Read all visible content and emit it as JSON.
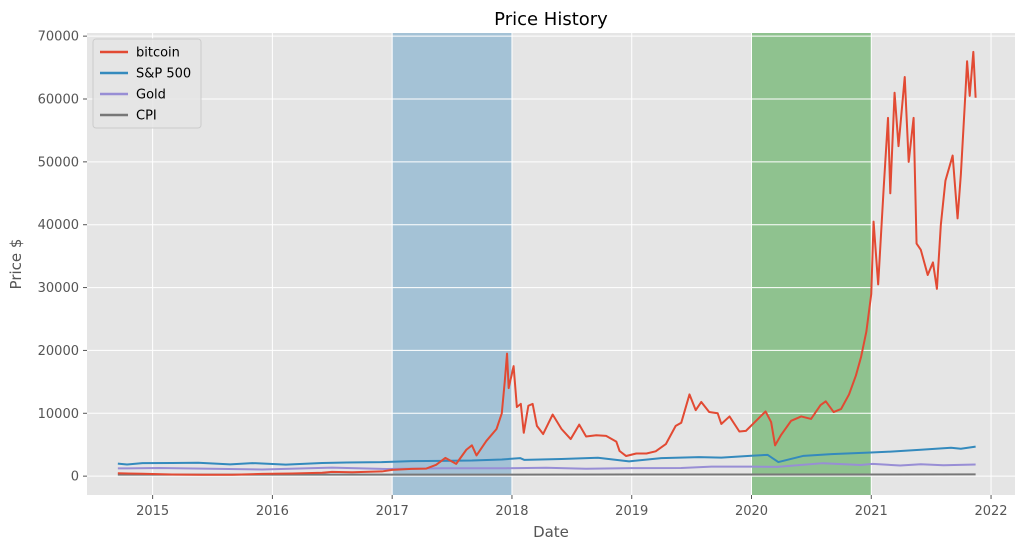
{
  "chart_data": {
    "type": "line",
    "title": "Price History",
    "xlabel": "Date",
    "ylabel": "Price $",
    "xlim": [
      "2014-06-15",
      "2022-03-15"
    ],
    "ylim": [
      -3000,
      70500
    ],
    "grid": true,
    "legend_placement": "top-left",
    "x_ticks": [
      "2015",
      "2016",
      "2017",
      "2018",
      "2019",
      "2020",
      "2021",
      "2022"
    ],
    "y_ticks": [
      "0",
      "10000",
      "20000",
      "30000",
      "40000",
      "50000",
      "60000",
      "70000"
    ],
    "shaded_regions": [
      {
        "x_start": "2017-01-01",
        "x_end": "2018-01-01",
        "color": "#a4c2d6"
      },
      {
        "x_start": "2020-01-01",
        "x_end": "2021-01-01",
        "color": "#8fc28f"
      }
    ],
    "series": [
      {
        "name": "bitcoin",
        "color": "#e24a33",
        "points": [
          [
            "2014-09-17",
            457
          ],
          [
            "2014-12-01",
            378
          ],
          [
            "2015-03-01",
            260
          ],
          [
            "2015-06-01",
            225
          ],
          [
            "2015-09-01",
            230
          ],
          [
            "2015-12-01",
            360
          ],
          [
            "2016-03-01",
            415
          ],
          [
            "2016-06-01",
            540
          ],
          [
            "2016-07-01",
            670
          ],
          [
            "2016-09-01",
            610
          ],
          [
            "2016-12-01",
            750
          ],
          [
            "2017-01-01",
            1000
          ],
          [
            "2017-03-01",
            1150
          ],
          [
            "2017-04-15",
            1200
          ],
          [
            "2017-05-15",
            1800
          ],
          [
            "2017-06-12",
            2900
          ],
          [
            "2017-07-15",
            1950
          ],
          [
            "2017-08-15",
            4200
          ],
          [
            "2017-09-01",
            4900
          ],
          [
            "2017-09-15",
            3300
          ],
          [
            "2017-10-15",
            5600
          ],
          [
            "2017-11-15",
            7500
          ],
          [
            "2017-12-01",
            10000
          ],
          [
            "2017-12-10",
            15000
          ],
          [
            "2017-12-17",
            19500
          ],
          [
            "2017-12-22",
            14000
          ],
          [
            "2018-01-06",
            17500
          ],
          [
            "2018-01-16",
            11000
          ],
          [
            "2018-01-28",
            11500
          ],
          [
            "2018-02-06",
            6900
          ],
          [
            "2018-02-20",
            11200
          ],
          [
            "2018-03-05",
            11500
          ],
          [
            "2018-03-18",
            8000
          ],
          [
            "2018-04-06",
            6700
          ],
          [
            "2018-05-05",
            9800
          ],
          [
            "2018-06-01",
            7500
          ],
          [
            "2018-06-29",
            5900
          ],
          [
            "2018-07-25",
            8200
          ],
          [
            "2018-08-15",
            6300
          ],
          [
            "2018-09-15",
            6500
          ],
          [
            "2018-10-15",
            6400
          ],
          [
            "2018-11-15",
            5500
          ],
          [
            "2018-11-25",
            4000
          ],
          [
            "2018-12-15",
            3200
          ],
          [
            "2019-01-15",
            3600
          ],
          [
            "2019-02-15",
            3600
          ],
          [
            "2019-03-15",
            3950
          ],
          [
            "2019-04-15",
            5100
          ],
          [
            "2019-05-15",
            8000
          ],
          [
            "2019-06-01",
            8500
          ],
          [
            "2019-06-26",
            13000
          ],
          [
            "2019-07-15",
            10500
          ],
          [
            "2019-08-01",
            11800
          ],
          [
            "2019-08-25",
            10200
          ],
          [
            "2019-09-20",
            10000
          ],
          [
            "2019-10-01",
            8300
          ],
          [
            "2019-10-26",
            9500
          ],
          [
            "2019-11-25",
            7100
          ],
          [
            "2019-12-15",
            7200
          ],
          [
            "2020-01-15",
            8800
          ],
          [
            "2020-02-13",
            10300
          ],
          [
            "2020-03-01",
            8600
          ],
          [
            "2020-03-13",
            4900
          ],
          [
            "2020-04-01",
            6600
          ],
          [
            "2020-05-01",
            8800
          ],
          [
            "2020-06-01",
            9500
          ],
          [
            "2020-07-01",
            9100
          ],
          [
            "2020-07-30",
            11300
          ],
          [
            "2020-08-15",
            11900
          ],
          [
            "2020-09-08",
            10200
          ],
          [
            "2020-10-01",
            10700
          ],
          [
            "2020-10-25",
            13000
          ],
          [
            "2020-11-15",
            16000
          ],
          [
            "2020-12-01",
            19000
          ],
          [
            "2020-12-17",
            23000
          ],
          [
            "2021-01-01",
            29000
          ],
          [
            "2021-01-08",
            40500
          ],
          [
            "2021-01-22",
            30500
          ],
          [
            "2021-02-08",
            46000
          ],
          [
            "2021-02-21",
            57000
          ],
          [
            "2021-02-28",
            45000
          ],
          [
            "2021-03-13",
            61000
          ],
          [
            "2021-03-25",
            52500
          ],
          [
            "2021-04-13",
            63500
          ],
          [
            "2021-04-25",
            50000
          ],
          [
            "2021-05-10",
            57000
          ],
          [
            "2021-05-19",
            37000
          ],
          [
            "2021-06-01",
            36000
          ],
          [
            "2021-06-22",
            32000
          ],
          [
            "2021-07-08",
            34000
          ],
          [
            "2021-07-20",
            29800
          ],
          [
            "2021-08-01",
            40000
          ],
          [
            "2021-08-15",
            47000
          ],
          [
            "2021-09-06",
            51000
          ],
          [
            "2021-09-21",
            41000
          ],
          [
            "2021-10-01",
            48000
          ],
          [
            "2021-10-15",
            61000
          ],
          [
            "2021-10-20",
            66000
          ],
          [
            "2021-10-28",
            60500
          ],
          [
            "2021-11-08",
            67500
          ],
          [
            "2021-11-15",
            60200
          ]
        ]
      },
      {
        "name": "S&P 500",
        "color": "#348abd",
        "points": [
          [
            "2014-09-17",
            2000
          ],
          [
            "2014-10-15",
            1860
          ],
          [
            "2014-12-01",
            2070
          ],
          [
            "2015-03-01",
            2100
          ],
          [
            "2015-05-20",
            2130
          ],
          [
            "2015-08-25",
            1870
          ],
          [
            "2015-11-01",
            2080
          ],
          [
            "2016-02-11",
            1830
          ],
          [
            "2016-06-01",
            2100
          ],
          [
            "2016-08-15",
            2180
          ],
          [
            "2016-12-01",
            2230
          ],
          [
            "2017-03-01",
            2390
          ],
          [
            "2017-06-01",
            2430
          ],
          [
            "2017-09-01",
            2480
          ],
          [
            "2017-12-01",
            2650
          ],
          [
            "2018-01-26",
            2870
          ],
          [
            "2018-02-08",
            2580
          ],
          [
            "2018-06-01",
            2730
          ],
          [
            "2018-09-20",
            2930
          ],
          [
            "2018-12-24",
            2350
          ],
          [
            "2019-04-01",
            2870
          ],
          [
            "2019-07-25",
            3020
          ],
          [
            "2019-10-01",
            2950
          ],
          [
            "2020-01-01",
            3250
          ],
          [
            "2020-02-19",
            3390
          ],
          [
            "2020-03-23",
            2240
          ],
          [
            "2020-06-08",
            3230
          ],
          [
            "2020-09-01",
            3500
          ],
          [
            "2020-12-31",
            3760
          ],
          [
            "2021-03-01",
            3900
          ],
          [
            "2021-06-01",
            4200
          ],
          [
            "2021-09-01",
            4520
          ],
          [
            "2021-10-01",
            4350
          ],
          [
            "2021-11-15",
            4700
          ]
        ]
      },
      {
        "name": "Gold",
        "color": "#988ed5",
        "points": [
          [
            "2014-09-17",
            1230
          ],
          [
            "2015-01-20",
            1290
          ],
          [
            "2015-06-01",
            1190
          ],
          [
            "2015-12-01",
            1060
          ],
          [
            "2016-07-01",
            1350
          ],
          [
            "2016-12-15",
            1130
          ],
          [
            "2017-06-01",
            1260
          ],
          [
            "2017-12-15",
            1260
          ],
          [
            "2018-04-15",
            1340
          ],
          [
            "2018-08-15",
            1180
          ],
          [
            "2018-12-31",
            1280
          ],
          [
            "2019-06-01",
            1300
          ],
          [
            "2019-09-01",
            1520
          ],
          [
            "2020-01-01",
            1520
          ],
          [
            "2020-03-20",
            1480
          ],
          [
            "2020-08-06",
            2060
          ],
          [
            "2020-11-30",
            1770
          ],
          [
            "2021-01-05",
            1950
          ],
          [
            "2021-03-30",
            1690
          ],
          [
            "2021-06-01",
            1900
          ],
          [
            "2021-08-09",
            1730
          ],
          [
            "2021-11-15",
            1860
          ]
        ]
      },
      {
        "name": "CPI",
        "color": "#777777",
        "points": [
          [
            "2014-09-17",
            237
          ],
          [
            "2016-01-01",
            237
          ],
          [
            "2017-01-01",
            242
          ],
          [
            "2018-01-01",
            248
          ],
          [
            "2019-01-01",
            252
          ],
          [
            "2020-01-01",
            258
          ],
          [
            "2021-01-01",
            262
          ],
          [
            "2021-11-15",
            277
          ]
        ]
      }
    ]
  }
}
